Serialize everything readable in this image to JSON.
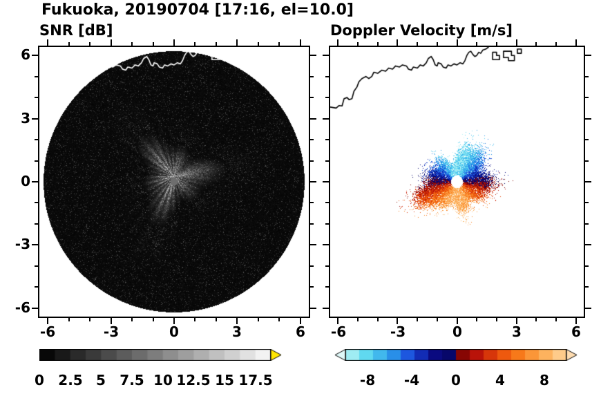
{
  "header": {
    "title": "Fukuoka, 20190704 [17:16, el=10.0]"
  },
  "panels": {
    "snr": {
      "title": "SNR [dB]",
      "xtick_labels": [
        "-6",
        "-3",
        "0",
        "3",
        "6"
      ],
      "ytick_labels": [
        "6",
        "3",
        "0",
        "-3",
        "-6"
      ],
      "colorbar_labels": [
        "0",
        "2.5",
        "5",
        "7.5",
        "10",
        "12.5",
        "15",
        "17.5"
      ]
    },
    "velocity": {
      "title": "Doppler Velocity [m/s]",
      "xtick_labels": [
        "-6",
        "-3",
        "0",
        "3",
        "6"
      ],
      "colorbar_labels": [
        "-8",
        "-4",
        "0",
        "4",
        "8"
      ]
    }
  },
  "coastline": {
    "line": [
      [
        -6.4,
        3.55
      ],
      [
        -6.1,
        3.5
      ],
      [
        -5.95,
        3.62
      ],
      [
        -5.8,
        3.6
      ],
      [
        -5.7,
        3.95
      ],
      [
        -5.55,
        4.0
      ],
      [
        -5.45,
        3.9
      ],
      [
        -5.3,
        3.95
      ],
      [
        -5.2,
        4.3
      ],
      [
        -5.05,
        4.5
      ],
      [
        -4.95,
        4.75
      ],
      [
        -4.8,
        4.9
      ],
      [
        -4.6,
        5.0
      ],
      [
        -4.45,
        4.9
      ],
      [
        -4.3,
        5.0
      ],
      [
        -4.2,
        5.2
      ],
      [
        -4.0,
        5.15
      ],
      [
        -3.8,
        5.3
      ],
      [
        -3.6,
        5.25
      ],
      [
        -3.45,
        5.4
      ],
      [
        -3.25,
        5.35
      ],
      [
        -3.1,
        5.5
      ],
      [
        -2.9,
        5.45
      ],
      [
        -2.75,
        5.55
      ],
      [
        -2.55,
        5.5
      ],
      [
        -2.45,
        5.35
      ],
      [
        -2.3,
        5.3
      ],
      [
        -2.2,
        5.45
      ],
      [
        -2.0,
        5.4
      ],
      [
        -1.85,
        5.55
      ],
      [
        -1.7,
        5.5
      ],
      [
        -1.55,
        5.65
      ],
      [
        -1.45,
        5.85
      ],
      [
        -1.3,
        5.95
      ],
      [
        -1.2,
        5.8
      ],
      [
        -1.1,
        5.55
      ],
      [
        -1.0,
        5.5
      ],
      [
        -0.95,
        5.65
      ],
      [
        -0.8,
        5.6
      ],
      [
        -0.7,
        5.45
      ],
      [
        -0.55,
        5.4
      ],
      [
        -0.45,
        5.55
      ],
      [
        -0.3,
        5.5
      ],
      [
        -0.15,
        5.6
      ],
      [
        0.0,
        5.55
      ],
      [
        0.15,
        5.65
      ],
      [
        0.3,
        5.6
      ],
      [
        0.4,
        5.75
      ],
      [
        0.5,
        6.0
      ],
      [
        0.6,
        6.15
      ],
      [
        0.7,
        6.2
      ],
      [
        0.8,
        6.05
      ],
      [
        0.9,
        5.95
      ],
      [
        1.0,
        6.0
      ],
      [
        1.1,
        6.15
      ],
      [
        1.2,
        6.1
      ],
      [
        1.3,
        6.25
      ],
      [
        1.45,
        6.3
      ],
      [
        1.6,
        6.4
      ]
    ],
    "islands": [
      [
        [
          1.8,
          5.8
        ],
        [
          2.15,
          5.8
        ],
        [
          2.15,
          6.0
        ],
        [
          2.0,
          6.0
        ],
        [
          2.0,
          6.15
        ],
        [
          1.8,
          6.15
        ]
      ],
      [
        [
          2.35,
          5.9
        ],
        [
          2.6,
          5.9
        ],
        [
          2.6,
          5.75
        ],
        [
          2.9,
          5.75
        ],
        [
          2.9,
          6.0
        ],
        [
          2.75,
          6.0
        ],
        [
          2.75,
          6.2
        ],
        [
          2.35,
          6.2
        ]
      ],
      [
        [
          3.05,
          6.1
        ],
        [
          3.25,
          6.1
        ],
        [
          3.25,
          6.3
        ],
        [
          3.05,
          6.3
        ]
      ]
    ]
  },
  "chart_data": [
    {
      "type": "heatmap",
      "name": "snr_ppi",
      "title": "SNR [dB]",
      "units": "dB",
      "axis_range": {
        "x": [
          -6.4,
          6.4
        ],
        "y": [
          -6.4,
          6.4
        ]
      },
      "xticks": [
        -6,
        -3,
        0,
        3,
        6
      ],
      "yticks": [
        -6,
        -3,
        0,
        3,
        6
      ],
      "minor_tick_step": 1,
      "colorbar": {
        "range": [
          0,
          18.75
        ],
        "tick_values": [
          0,
          2.5,
          5,
          7.5,
          10,
          12.5,
          15,
          17.5
        ],
        "colormap": "grayscale-black-to-white",
        "segments": 15,
        "over_arrow_color": "#ffe600"
      },
      "scan_area": {
        "shape": "circle",
        "center": [
          0,
          0
        ],
        "radius": 6.2,
        "background": "black with sparse faint speckle noise (SNR near 0 dB)"
      },
      "echo": {
        "center": [
          0,
          0.25
        ],
        "mean_radius": 2.2,
        "peak_snr_db": 13,
        "texture": "speckled precipitation echo with radial streaks fading outward"
      },
      "radar_dot": {
        "center": [
          0,
          0
        ],
        "radius": 0.18,
        "color": "#6e6e6e"
      },
      "coastline_color": "#ffffff"
    },
    {
      "type": "heatmap",
      "name": "doppler_velocity_ppi",
      "title": "Doppler Velocity [m/s]",
      "units": "m/s",
      "axis_range": {
        "x": [
          -6.4,
          6.4
        ],
        "y": [
          -6.4,
          6.4
        ]
      },
      "xticks": [
        -6,
        -3,
        0,
        3,
        6
      ],
      "yticks": [
        -6,
        -3,
        0,
        3,
        6
      ],
      "minor_tick_step": 1,
      "colorbar": {
        "range": [
          -10,
          10
        ],
        "tick_values": [
          -8,
          -4,
          0,
          4,
          8
        ],
        "segments": 16,
        "stops": [
          [
            -10,
            "#bef5f5"
          ],
          [
            -8,
            "#5ad7f0"
          ],
          [
            -6,
            "#2da0eb"
          ],
          [
            -4,
            "#1946dc"
          ],
          [
            -2,
            "#0a0a82"
          ],
          [
            -0.01,
            "#05055f"
          ],
          [
            0.01,
            "#6e0000"
          ],
          [
            2,
            "#be140a"
          ],
          [
            4,
            "#eb500a"
          ],
          [
            6,
            "#fa821e"
          ],
          [
            8,
            "#fdaf5a"
          ],
          [
            10,
            "#fed7a0"
          ]
        ],
        "under_arrow_color": "#dff8f8",
        "over_arrow_color": "#fedcb0"
      },
      "echo": {
        "center": [
          0,
          0
        ],
        "mean_radius": 1.5,
        "pattern": "dipole: negative (blue) radial velocities north of radar, positive (orange/red) to the south",
        "max_abs_velocity_ms": 9
      },
      "radar_dot": {
        "center": [
          0,
          0
        ],
        "radius": 0.3,
        "color": "#ffffff"
      },
      "coastline_color": "#000000"
    }
  ]
}
